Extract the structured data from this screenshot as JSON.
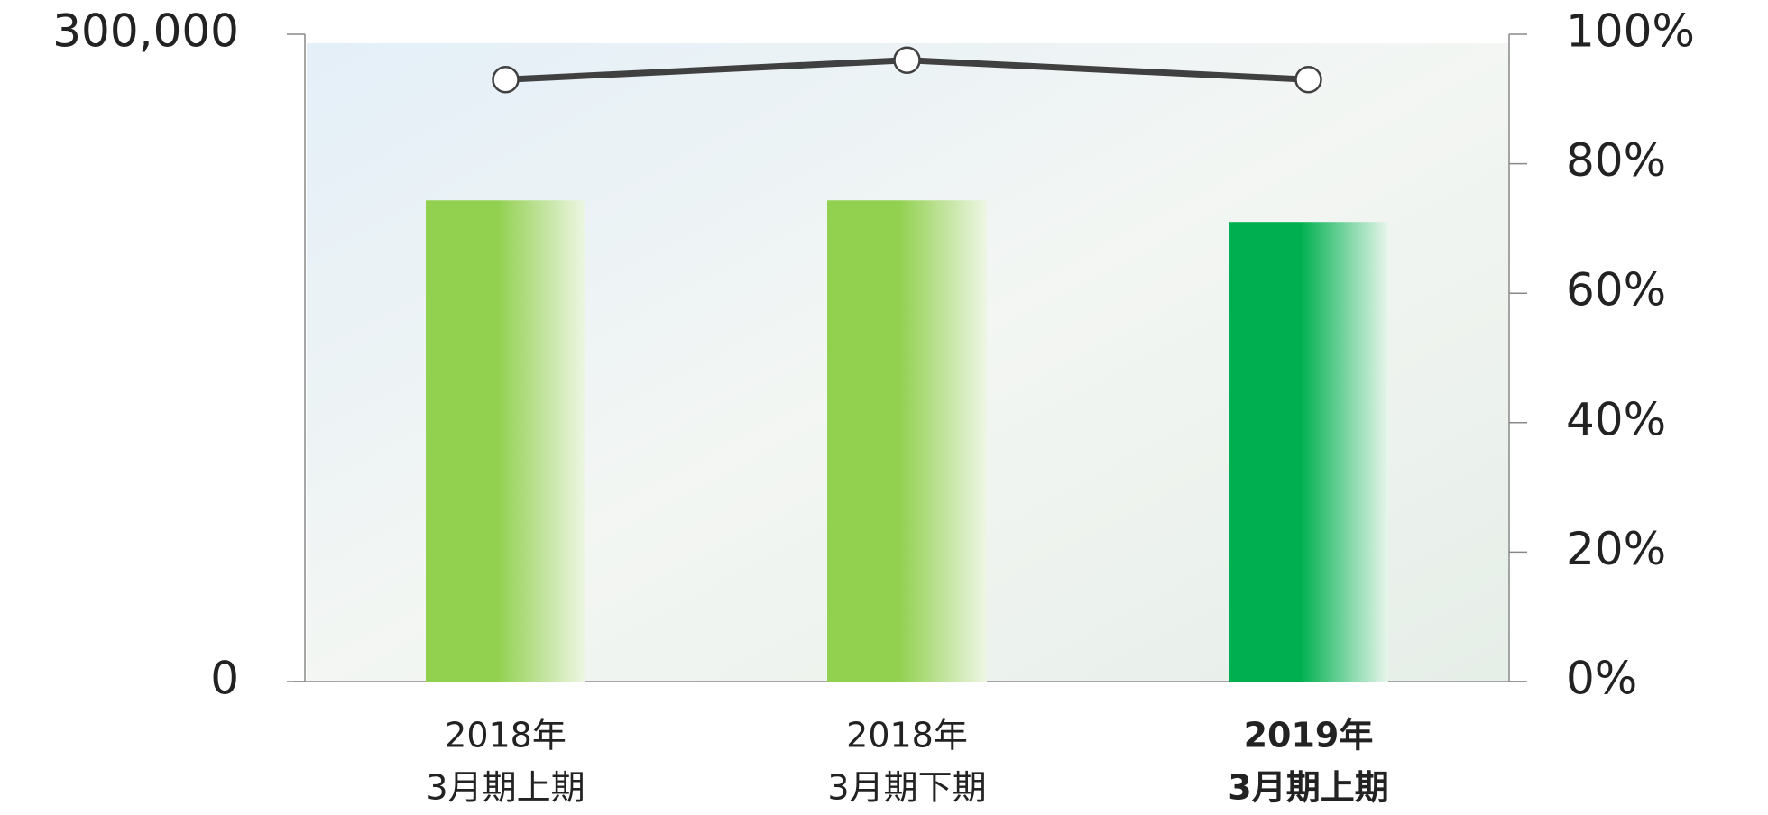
{
  "chart_data": {
    "type": "bar_line",
    "categories": [
      [
        "2018年",
        "3月期上期"
      ],
      [
        "2018年",
        "3月期下期"
      ],
      [
        "2019年",
        "3月期上期"
      ]
    ],
    "highlight": [
      false,
      false,
      true
    ],
    "series": [
      {
        "type": "bar",
        "colors": [
          "#92d050",
          "#92d050",
          "#00b050"
        ],
        "values": [
          223000,
          223000,
          213000
        ]
      },
      {
        "type": "line",
        "axis": "y2",
        "color": "#404040",
        "values": [
          93,
          96,
          93
        ]
      }
    ],
    "ylim": [
      0,
      300000
    ],
    "yticks": [
      0,
      {
        "value": 300000,
        "label": "300,000"
      }
    ],
    "y2lim": [
      0,
      100
    ],
    "y2ticks": [
      {
        "value": 0,
        "label": "0%"
      },
      {
        "value": 20,
        "label": "20%"
      },
      {
        "value": 40,
        "label": "40%"
      },
      {
        "value": 60,
        "label": "60%"
      },
      {
        "value": 80,
        "label": "80%"
      },
      {
        "value": 100,
        "label": "100%"
      }
    ]
  }
}
